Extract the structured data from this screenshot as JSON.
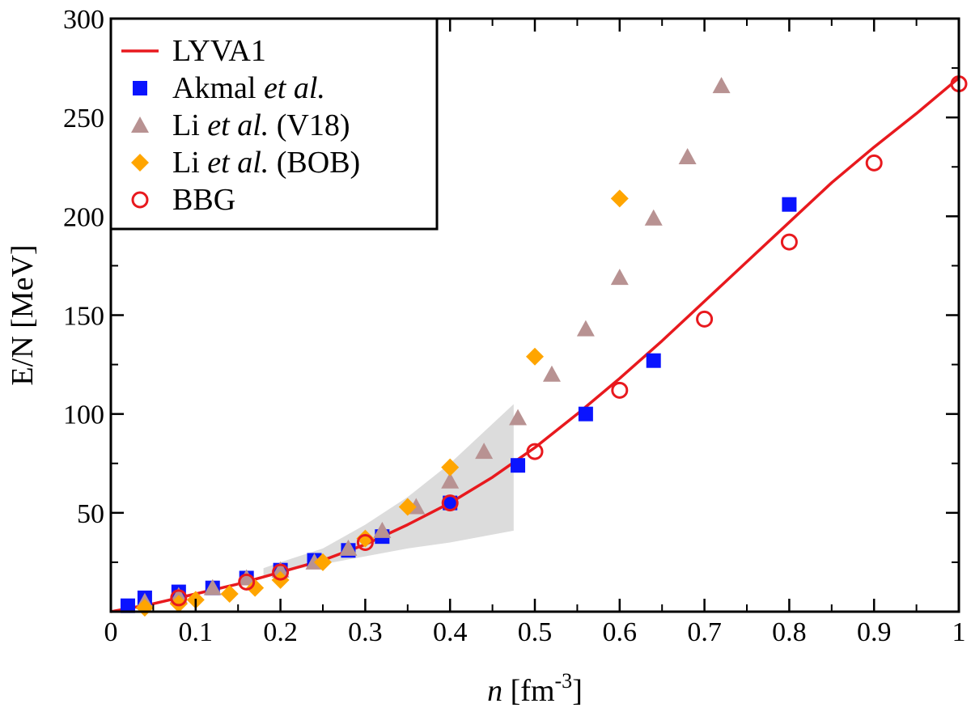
{
  "chart_data": {
    "type": "scatter",
    "xlabel_parts": {
      "var": "n",
      "unit_open": " [fm",
      "exp": "-3",
      "unit_close": "]"
    },
    "ylabel": "E/N [MeV]",
    "xlim": [
      0,
      1
    ],
    "ylim": [
      0,
      300
    ],
    "x_ticks": [
      0,
      0.1,
      0.2,
      0.3,
      0.4,
      0.5,
      0.6,
      0.7,
      0.8,
      0.9,
      1
    ],
    "x_tick_labels": [
      "0",
      "0.1",
      "0.2",
      "0.3",
      "0.4",
      "0.5",
      "0.6",
      "0.7",
      "0.8",
      "0.9",
      "1"
    ],
    "y_ticks": [
      50,
      100,
      150,
      200,
      250,
      300
    ],
    "y_tick_labels": [
      "50",
      "100",
      "150",
      "200",
      "250",
      "300"
    ],
    "grid": false,
    "legend_position": "top-left",
    "band": {
      "x": [
        0.18,
        0.2,
        0.25,
        0.3,
        0.35,
        0.4,
        0.45,
        0.475
      ],
      "lower": [
        18,
        20,
        24,
        28,
        32,
        35,
        39,
        41
      ],
      "upper": [
        22,
        25,
        32,
        44,
        58,
        75,
        95,
        105
      ],
      "color": "#dcdcdc"
    },
    "series": [
      {
        "name": "LYVA1",
        "type": "line",
        "color": "#e8191e",
        "x": [
          0,
          0.05,
          0.1,
          0.15,
          0.2,
          0.25,
          0.3,
          0.35,
          0.4,
          0.45,
          0.5,
          0.55,
          0.6,
          0.65,
          0.7,
          0.75,
          0.8,
          0.85,
          0.9,
          0.95,
          1.0
        ],
        "y": [
          0,
          4,
          9,
          14,
          20,
          26,
          34,
          44,
          55,
          68,
          83,
          100,
          118,
          137,
          157,
          177,
          197,
          217,
          235,
          252,
          270
        ]
      },
      {
        "name_parts": [
          "Akmal  ",
          "et al.",
          ""
        ],
        "type": "scatter",
        "marker": "square",
        "color": "#0a14ff",
        "x": [
          0.02,
          0.04,
          0.08,
          0.12,
          0.16,
          0.2,
          0.24,
          0.28,
          0.32,
          0.4,
          0.48,
          0.56,
          0.64,
          0.8
        ],
        "y": [
          3,
          7,
          10,
          12,
          17,
          21,
          26,
          31,
          38,
          55,
          74,
          100,
          127,
          206
        ]
      },
      {
        "name_parts": [
          "Li ",
          "et al.",
          " (V18)"
        ],
        "type": "scatter",
        "marker": "triangle",
        "color": "#b89292",
        "x": [
          0.04,
          0.08,
          0.12,
          0.16,
          0.2,
          0.24,
          0.28,
          0.32,
          0.36,
          0.4,
          0.44,
          0.48,
          0.52,
          0.56,
          0.6,
          0.64,
          0.68,
          0.72
        ],
        "y": [
          5,
          8,
          12,
          17,
          21,
          25,
          32,
          41,
          53,
          66,
          81,
          98,
          120,
          143,
          169,
          199,
          230,
          266
        ]
      },
      {
        "name_parts": [
          "Li ",
          "et al.",
          " (BOB)"
        ],
        "type": "scatter",
        "marker": "diamond",
        "color": "#ffa500",
        "x": [
          0.04,
          0.08,
          0.1,
          0.14,
          0.17,
          0.2,
          0.25,
          0.3,
          0.35,
          0.4,
          0.5,
          0.6
        ],
        "y": [
          2,
          4,
          6,
          9,
          12,
          16,
          25,
          37,
          53,
          73,
          129,
          209
        ]
      },
      {
        "name": "BBG",
        "type": "scatter",
        "marker": "circle-open",
        "color": "#e8191e",
        "x": [
          0.08,
          0.16,
          0.2,
          0.3,
          0.4,
          0.5,
          0.6,
          0.7,
          0.8,
          0.9,
          1.0
        ],
        "y": [
          7,
          15,
          20,
          35,
          55,
          81,
          112,
          148,
          187,
          227,
          267
        ]
      }
    ]
  }
}
